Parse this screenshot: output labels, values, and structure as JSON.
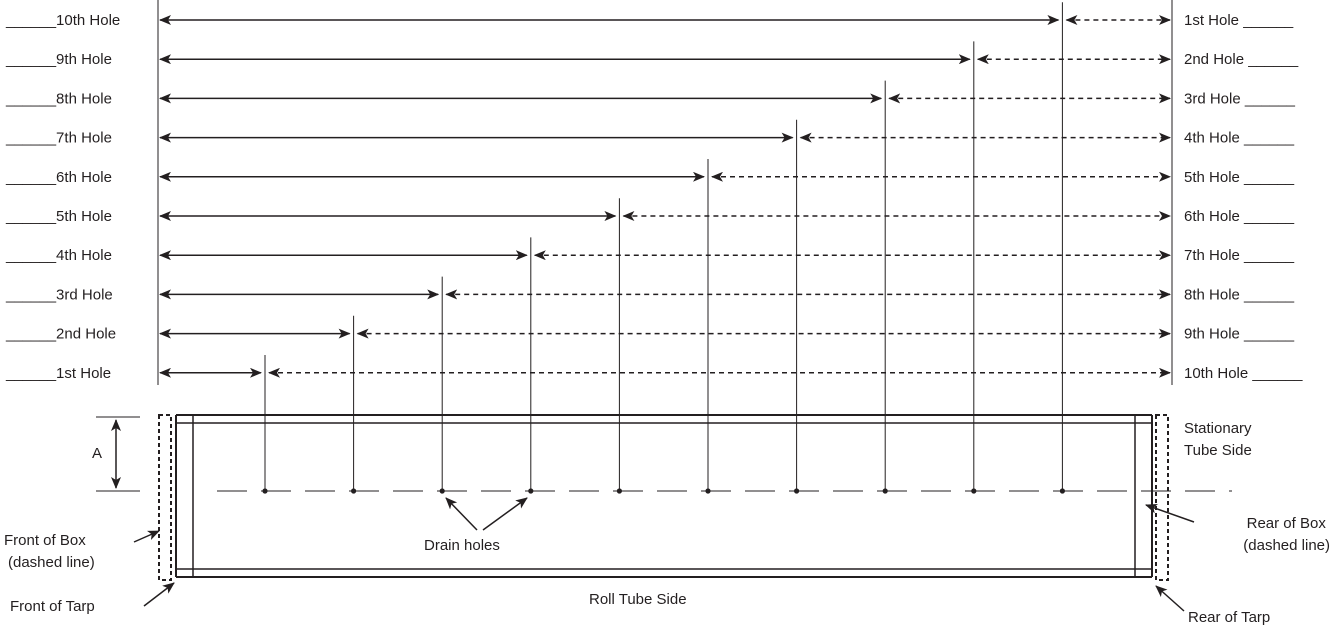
{
  "colors": {
    "line": "#231f20",
    "background": "#ffffff"
  },
  "blank_line": "______",
  "left_hole_labels": [
    "10th Hole",
    "9th Hole",
    "8th Hole",
    "7th Hole",
    "6th Hole",
    "5th Hole",
    "4th Hole",
    "3rd Hole",
    "2nd Hole",
    "1st Hole"
  ],
  "right_hole_labels": [
    "1st Hole",
    "2nd Hole",
    "3rd Hole",
    "4th Hole",
    "5th Hole",
    "6th Hole",
    "7th Hole",
    "8th Hole",
    "9th Hole",
    "10th Hole"
  ],
  "dimension_label": "A",
  "stationary_side": [
    "Stationary",
    "Tube Side"
  ],
  "front_of_box": [
    "Front of Box",
    "(dashed line)"
  ],
  "rear_of_box": [
    "Rear of Box",
    "(dashed line)"
  ],
  "drain_holes_label": "Drain holes",
  "roll_tube_side_label": "Roll Tube Side",
  "front_of_tarp_label": "Front of Tarp",
  "rear_of_tarp_label": "Rear of Tarp",
  "drain_hole_count": 10
}
